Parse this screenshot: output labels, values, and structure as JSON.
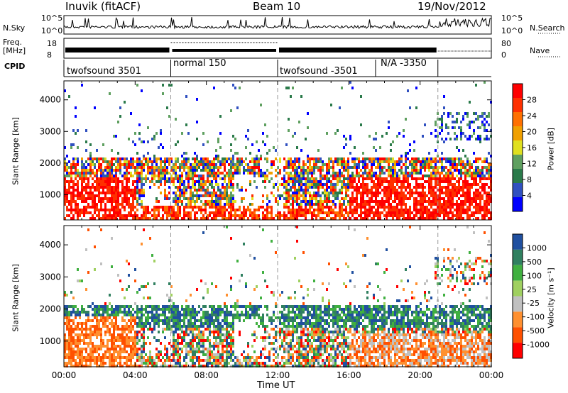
{
  "header": {
    "station": "Inuvik (fitACF)",
    "beam": "Beam 10",
    "date": "19/Nov/2012"
  },
  "noise_panel": {
    "left_label": "N.Sky",
    "right_label": "N.Search",
    "left_ticks": [
      "10^5",
      "10^0"
    ],
    "right_ticks": [
      "10^5",
      "10^0"
    ]
  },
  "freq_panel": {
    "left_label_1": "Freq.",
    "left_label_2": "[MHz]",
    "right_label": "Nave",
    "left_ticks": [
      "18",
      "8"
    ],
    "right_ticks": [
      "80",
      "0"
    ]
  },
  "cpid_panel": {
    "label": "CPID",
    "segments": [
      {
        "name": "twofsound 3501",
        "start_hour": 0,
        "end_hour": 6
      },
      {
        "name": "normal 150",
        "start_hour": 6,
        "end_hour": 12
      },
      {
        "name": "twofsound -3501",
        "start_hour": 12,
        "end_hour": 17.5
      },
      {
        "name": "N/A -3350",
        "start_hour": 17.5,
        "end_hour": 21
      }
    ]
  },
  "colors": {
    "power_scale": [
      "#0000ff",
      "#3050c0",
      "#2a7a4a",
      "#5fa060",
      "#e0e020",
      "#f0a000",
      "#ff7000",
      "#ff3000",
      "#ff0000"
    ],
    "velocity_scale": [
      "#ff0000",
      "#ff5000",
      "#ff9030",
      "#c0c0c0",
      "#a0d060",
      "#40b040",
      "#308060",
      "#2050a0"
    ]
  },
  "chart_data": [
    {
      "type": "heatmap",
      "panel": "power",
      "xlabel": "Time UT",
      "ylabel": "Slant Range [km]",
      "xlim": [
        0,
        24
      ],
      "ylim": [
        200,
        4600
      ],
      "x_ticks": [
        "00:00",
        "04:00",
        "08:00",
        "12:00",
        "16:00",
        "20:00",
        "00:00"
      ],
      "y_ticks": [
        1000,
        2000,
        3000,
        4000
      ],
      "colorbar": {
        "label": "Power [dB]",
        "ticks": [
          "28",
          "24",
          "20",
          "16",
          "12",
          "8",
          "4"
        ]
      }
    },
    {
      "type": "heatmap",
      "panel": "velocity",
      "xlabel": "Time UT",
      "ylabel": "Slant Range [km]",
      "xlim": [
        0,
        24
      ],
      "ylim": [
        200,
        4600
      ],
      "x_ticks": [
        "00:00",
        "04:00",
        "08:00",
        "12:00",
        "16:00",
        "20:00",
        "00:00"
      ],
      "y_ticks": [
        1000,
        2000,
        3000,
        4000
      ],
      "colorbar": {
        "label": "Velocity [m s⁻¹]",
        "ticks": [
          "1000",
          "500",
          "100",
          "25",
          "-25",
          "-100",
          "-500",
          "-1000"
        ]
      }
    }
  ],
  "x_axis_title": "Time UT"
}
